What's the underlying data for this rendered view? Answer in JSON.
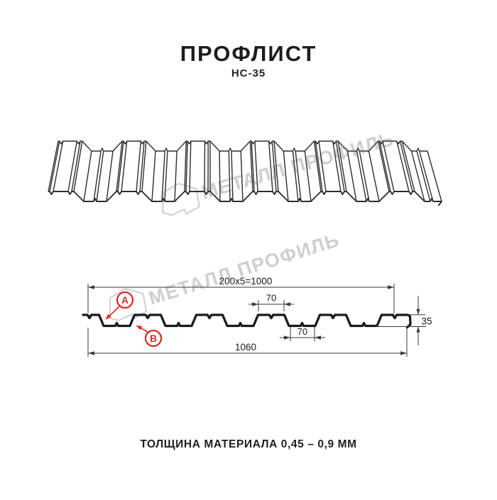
{
  "header": {
    "title": "ПРОФЛИСТ",
    "subtitle": "НС-35"
  },
  "watermark": {
    "text": "МЕТАЛЛ ПРОФИЛЬ"
  },
  "diagram": {
    "dim_top": "200x5=1000",
    "dim_top_flange": "70",
    "dim_bottom_flange": "70",
    "dim_overall": "1060",
    "dim_height": "35",
    "label_a": "A",
    "label_b": "B",
    "profile_height_mm": 35,
    "wave_step_mm": 200,
    "useful_width_mm": 1000,
    "overall_width_mm": 1060
  },
  "footer": {
    "text": "ТОЛЩИНА МАТЕРИАЛА 0,45 – 0,9 ММ"
  },
  "colors": {
    "accent": "#d92b2b",
    "line": "#2e2e2e",
    "watermark": "#cfcfcf",
    "ink": "#1d1d1d"
  }
}
